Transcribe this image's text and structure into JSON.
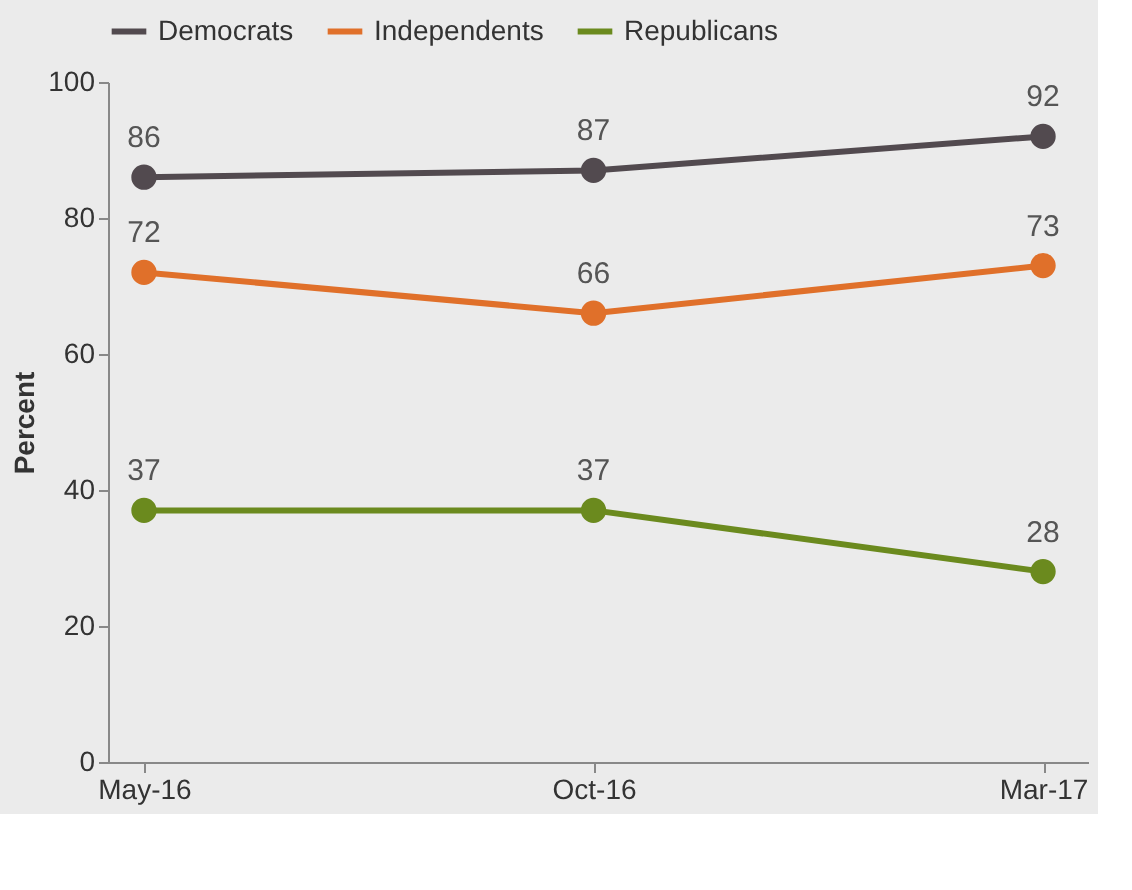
{
  "chart_data": {
    "type": "line",
    "ylabel": "Percent",
    "categories": [
      "May-16",
      "Oct-16",
      "Mar-17"
    ],
    "series": [
      {
        "name": "Democrats",
        "color": "#524a4f",
        "values": [
          86,
          87,
          92
        ]
      },
      {
        "name": "Independents",
        "color": "#e0702a",
        "values": [
          72,
          66,
          73
        ]
      },
      {
        "name": "Republicans",
        "color": "#6b8a1e",
        "values": [
          37,
          37,
          28
        ]
      }
    ],
    "ylim": [
      0,
      100
    ],
    "yticks": [
      0,
      20,
      40,
      60,
      80,
      100
    ],
    "data_labels": true,
    "legend": "top",
    "marker": "circle",
    "grid": false
  }
}
